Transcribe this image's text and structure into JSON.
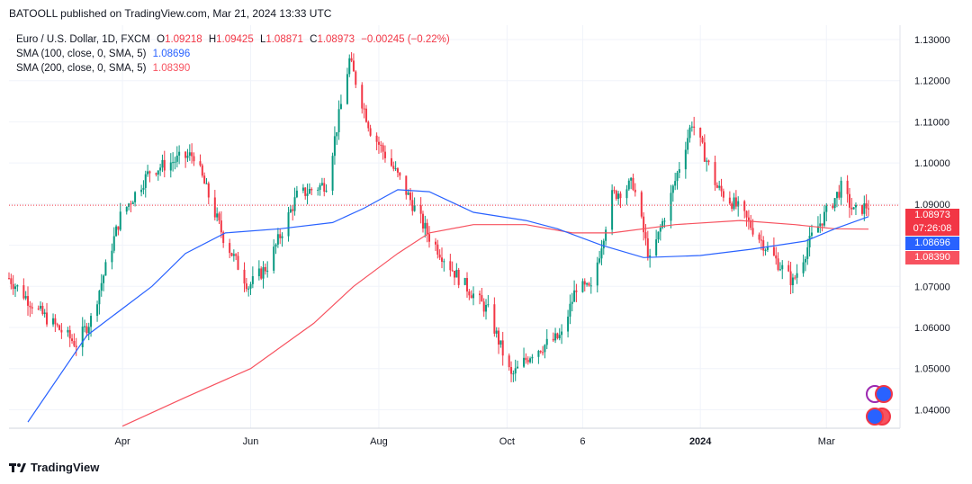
{
  "header": {
    "author": "BATOOLL",
    "published_text": "published on TradingView.com, Mar 21, 2024 13:33 UTC"
  },
  "legend": {
    "symbol": "Euro / U.S. Dollar, 1D, FXCM",
    "ohlc": {
      "o_label": "O",
      "o": "1.09218",
      "h_label": "H",
      "h": "1.09425",
      "l_label": "L",
      "l": "1.08871",
      "c_label": "C",
      "c": "1.08973",
      "change": "−0.00245 (−0.22%)"
    },
    "sma100": {
      "label": "SMA (100, close, 0, SMA, 5)",
      "value": "1.08696",
      "color": "#2962ff"
    },
    "sma200": {
      "label": "SMA (200, close, 0, SMA, 5)",
      "value": "1.08390",
      "color": "#f7525f"
    }
  },
  "price_badges": {
    "last_price": "1.08973",
    "countdown": "07:26:08",
    "sma100": "1.08696",
    "sma200": "1.08390"
  },
  "footer": {
    "brand": "TradingView"
  },
  "colors": {
    "up": "#089981",
    "down": "#f23645",
    "sma100": "#2962ff",
    "sma200": "#f7525f",
    "grid": "#f0f3fa"
  },
  "chart_data": {
    "type": "candlestick",
    "y_ticks": [
      "1.13000",
      "1.12000",
      "1.11000",
      "1.10000",
      "1.09000",
      "1.08000",
      "1.07000",
      "1.06000",
      "1.05000",
      "1.04000"
    ],
    "ylim": [
      1.0355,
      1.1335
    ],
    "x_ticks": [
      "Apr",
      "Jun",
      "Aug",
      "Oct",
      "6",
      "2024",
      "Mar"
    ],
    "x_tick_dates": [
      "2023-04-01",
      "2023-06-01",
      "2023-08-01",
      "2023-10-01",
      "2023-11-06",
      "2024-01-01",
      "2024-03-01"
    ],
    "x_range": [
      "2023-02-06",
      "2024-04-05"
    ],
    "close_path": [
      [
        "2023-02-06",
        1.072
      ],
      [
        "2023-02-20",
        1.064
      ],
      [
        "2023-03-10",
        1.056
      ],
      [
        "2023-03-17",
        1.062
      ],
      [
        "2023-03-31",
        1.087
      ],
      [
        "2023-04-14",
        1.098
      ],
      [
        "2023-04-28",
        1.101
      ],
      [
        "2023-05-05",
        1.102
      ],
      [
        "2023-05-19",
        1.082
      ],
      [
        "2023-05-31",
        1.07
      ],
      [
        "2023-06-09",
        1.075
      ],
      [
        "2023-06-23",
        1.092
      ],
      [
        "2023-07-07",
        1.095
      ],
      [
        "2023-07-18",
        1.125
      ],
      [
        "2023-07-28",
        1.108
      ],
      [
        "2023-08-11",
        1.096
      ],
      [
        "2023-08-25",
        1.082
      ],
      [
        "2023-09-08",
        1.072
      ],
      [
        "2023-09-22",
        1.064
      ],
      [
        "2023-10-03",
        1.048
      ],
      [
        "2023-10-13",
        1.054
      ],
      [
        "2023-10-27",
        1.058
      ],
      [
        "2023-11-03",
        1.07
      ],
      [
        "2023-11-10",
        1.069
      ],
      [
        "2023-11-20",
        1.092
      ],
      [
        "2023-11-30",
        1.095
      ],
      [
        "2023-12-08",
        1.076
      ],
      [
        "2023-12-18",
        1.092
      ],
      [
        "2023-12-28",
        1.11
      ],
      [
        "2024-01-09",
        1.094
      ],
      [
        "2024-01-19",
        1.089
      ],
      [
        "2024-02-02",
        1.079
      ],
      [
        "2024-02-14",
        1.071
      ],
      [
        "2024-02-23",
        1.082
      ],
      [
        "2024-03-08",
        1.094
      ],
      [
        "2024-03-14",
        1.088
      ],
      [
        "2024-03-21",
        1.08973
      ]
    ],
    "sma100_path": [
      [
        "2023-02-15",
        1.037
      ],
      [
        "2023-03-15",
        1.058
      ],
      [
        "2023-04-15",
        1.07
      ],
      [
        "2023-05-01",
        1.078
      ],
      [
        "2023-05-20",
        1.083
      ],
      [
        "2023-06-15",
        1.084
      ],
      [
        "2023-07-10",
        1.0855
      ],
      [
        "2023-07-25",
        1.089
      ],
      [
        "2023-08-10",
        1.0935
      ],
      [
        "2023-08-25",
        1.093
      ],
      [
        "2023-09-15",
        1.088
      ],
      [
        "2023-10-10",
        1.086
      ],
      [
        "2023-10-25",
        1.084
      ],
      [
        "2023-11-15",
        1.08
      ],
      [
        "2023-12-05",
        1.077
      ],
      [
        "2024-01-01",
        1.0775
      ],
      [
        "2024-01-25",
        1.079
      ],
      [
        "2024-02-20",
        1.081
      ],
      [
        "2024-03-05",
        1.084
      ],
      [
        "2024-03-21",
        1.08696
      ]
    ],
    "sma200_path": [
      [
        "2023-04-01",
        1.036
      ],
      [
        "2023-05-01",
        1.043
      ],
      [
        "2023-06-01",
        1.05
      ],
      [
        "2023-07-01",
        1.061
      ],
      [
        "2023-07-20",
        1.07
      ],
      [
        "2023-08-10",
        1.078
      ],
      [
        "2023-08-25",
        1.083
      ],
      [
        "2023-09-15",
        1.085
      ],
      [
        "2023-10-10",
        1.085
      ],
      [
        "2023-11-01",
        1.083
      ],
      [
        "2023-11-20",
        1.083
      ],
      [
        "2023-12-20",
        1.085
      ],
      [
        "2024-01-20",
        1.086
      ],
      [
        "2024-02-15",
        1.085
      ],
      [
        "2024-03-05",
        1.084
      ],
      [
        "2024-03-21",
        1.0839
      ]
    ]
  }
}
